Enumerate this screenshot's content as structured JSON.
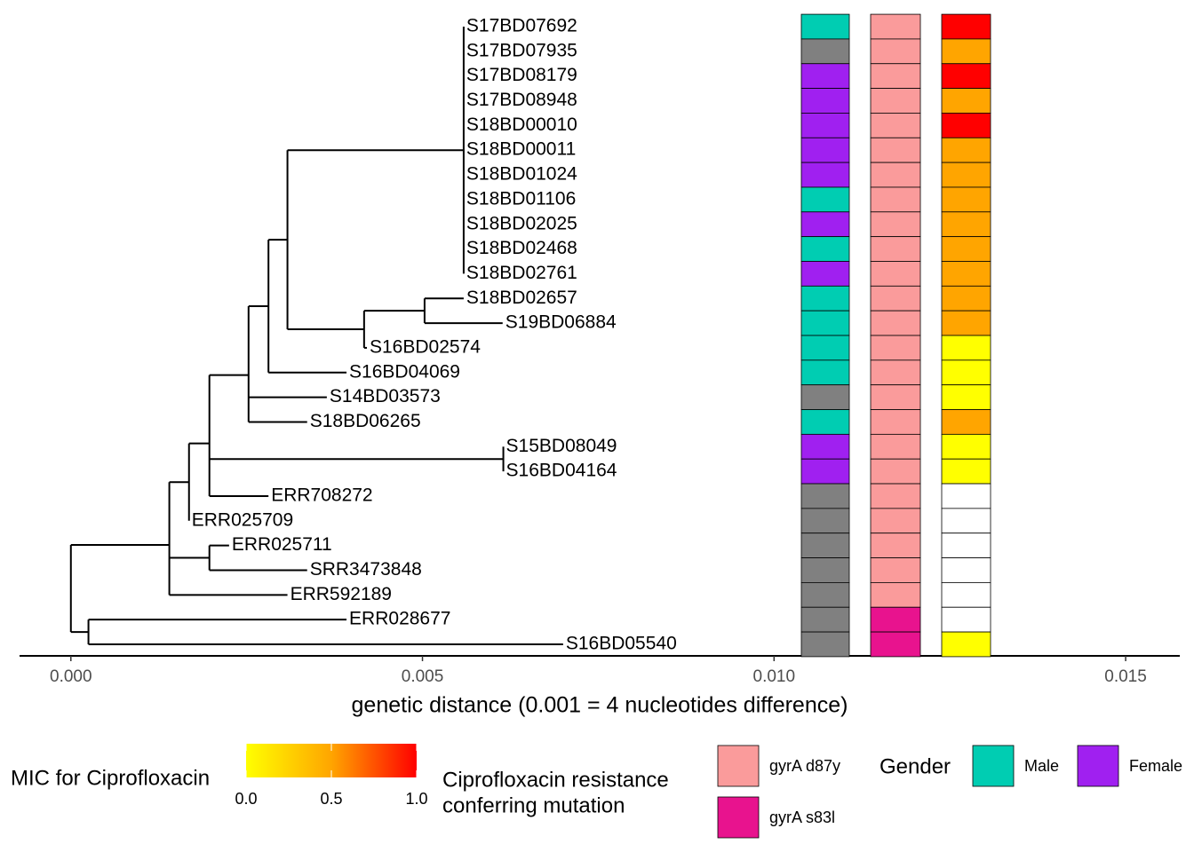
{
  "chart_data": {
    "type": "tree-heatmap",
    "x_label": "genetic distance (0.001 = 4 nucleotides difference)",
    "xlim": [
      -0.00073,
      0.01577
    ],
    "xticks": [
      {
        "value": 0,
        "label": "0.000"
      },
      {
        "value": 0.005,
        "label": "0.005"
      },
      {
        "value": 0.01,
        "label": "0.010"
      },
      {
        "value": 0.015,
        "label": "0.015"
      }
    ],
    "tree": {
      "x": 0,
      "children": [
        {
          "x": 0.0014,
          "children": [
            {
              "x": 0.00168,
              "children": [
                {
                  "x": 0.00197,
                  "children": [
                    {
                      "x": 0.002527,
                      "children": [
                        {
                          "x": 0.00281,
                          "children": [
                            {
                              "x": 0.00308,
                              "children": [
                                {
                                  "x": 0.005586,
                                  "children": [
                                    {
                                      "label": "S17BD07692",
                                      "x": 0.005586
                                    },
                                    {
                                      "label": "S17BD07935",
                                      "x": 0.005586
                                    },
                                    {
                                      "label": "S17BD08179",
                                      "x": 0.005586
                                    },
                                    {
                                      "label": "S17BD08948",
                                      "x": 0.005586
                                    },
                                    {
                                      "label": "S18BD00010",
                                      "x": 0.005586
                                    },
                                    {
                                      "label": "S18BD00011",
                                      "x": 0.005586
                                    },
                                    {
                                      "label": "S18BD01024",
                                      "x": 0.005586
                                    },
                                    {
                                      "label": "S18BD01106",
                                      "x": 0.005586
                                    },
                                    {
                                      "label": "S18BD02025",
                                      "x": 0.005586
                                    },
                                    {
                                      "label": "S18BD02468",
                                      "x": 0.005586
                                    },
                                    {
                                      "label": "S18BD02761",
                                      "x": 0.005586
                                    }
                                  ]
                                },
                                {
                                  "x": 0.00417,
                                  "children": [
                                    {
                                      "x": 0.00503,
                                      "children": [
                                        {
                                          "label": "S18BD02657",
                                          "x": 0.005586
                                        },
                                        {
                                          "label": "S19BD06884",
                                          "x": 0.00614
                                        }
                                      ]
                                    },
                                    {
                                      "label": "S16BD02574",
                                      "x": 0.00421
                                    }
                                  ]
                                }
                              ]
                            },
                            {
                              "label": "S16BD04069",
                              "x": 0.00392
                            }
                          ]
                        },
                        {
                          "label": "S14BD03573",
                          "x": 0.00364
                        },
                        {
                          "label": "S18BD06265",
                          "x": 0.00336
                        }
                      ]
                    },
                    {
                      "x": 0.00615,
                      "children": [
                        {
                          "label": "S15BD08049",
                          "x": 0.00615
                        },
                        {
                          "label": "S16BD04164",
                          "x": 0.00615
                        }
                      ]
                    },
                    {
                      "label": "ERR708272",
                      "x": 0.00281
                    }
                  ]
                },
                {
                  "label": "ERR025709",
                  "x": 0.00168
                }
              ]
            },
            {
              "x": 0.00197,
              "children": [
                {
                  "label": "ERR025711",
                  "x": 0.00225
                },
                {
                  "label": "SRR3473848",
                  "x": 0.00336
                }
              ]
            },
            {
              "label": "ERR592189",
              "x": 0.00308
            }
          ]
        },
        {
          "x": 0.00025,
          "children": [
            {
              "label": "ERR028677",
              "x": 0.00392
            },
            {
              "label": "S16BD05540",
              "x": 0.007
            }
          ]
        }
      ]
    },
    "heatmap": {
      "gender": [
        "Male",
        null,
        "Female",
        "Female",
        "Female",
        "Female",
        "Female",
        "Male",
        "Female",
        "Male",
        "Female",
        "Male",
        "Male",
        "Male",
        "Male",
        null,
        "Male",
        "Female",
        "Female",
        null,
        null,
        null,
        null,
        null,
        null,
        null
      ],
      "mutation": [
        "gyrA d87y",
        "gyrA d87y",
        "gyrA d87y",
        "gyrA d87y",
        "gyrA d87y",
        "gyrA d87y",
        "gyrA d87y",
        "gyrA d87y",
        "gyrA d87y",
        "gyrA d87y",
        "gyrA d87y",
        "gyrA d87y",
        "gyrA d87y",
        "gyrA d87y",
        "gyrA d87y",
        "gyrA d87y",
        "gyrA d87y",
        "gyrA d87y",
        "gyrA d87y",
        "gyrA d87y",
        "gyrA d87y",
        "gyrA d87y",
        "gyrA d87y",
        "gyrA d87y",
        "gyrA s83l",
        "gyrA s83l"
      ],
      "mic": [
        1,
        0.5,
        1,
        0.5,
        1,
        0.5,
        0.5,
        0.5,
        0.5,
        0.5,
        0.5,
        0.5,
        0.5,
        0,
        0,
        0,
        0.5,
        0,
        0,
        null,
        null,
        null,
        null,
        null,
        null,
        0
      ],
      "na_color": "#808080"
    },
    "mic_legend": {
      "title": "MIC for Ciprofloxacin",
      "lim": [
        0,
        1
      ],
      "colors": [
        "#FFFF00",
        "#FFA500",
        "#FF0000"
      ],
      "ticks": [
        {
          "value": 0,
          "label": "0.0"
        },
        {
          "value": 0.5,
          "label": "0.5"
        },
        {
          "value": 1,
          "label": "1.0"
        }
      ]
    },
    "mutation_legend": {
      "title": [
        "Ciprofloxacin resistance",
        " conferring mutation"
      ],
      "entries": [
        {
          "name": "gyrA d87y",
          "color": "#FA9B9B"
        },
        {
          "name": "gyrA s83l",
          "color": "#E8138E"
        }
      ]
    },
    "gender_legend": {
      "title": "Gender",
      "entries": [
        {
          "name": "Male",
          "color": "#00CDB2"
        },
        {
          "name": "Female",
          "color": "#A020F0"
        }
      ]
    }
  }
}
